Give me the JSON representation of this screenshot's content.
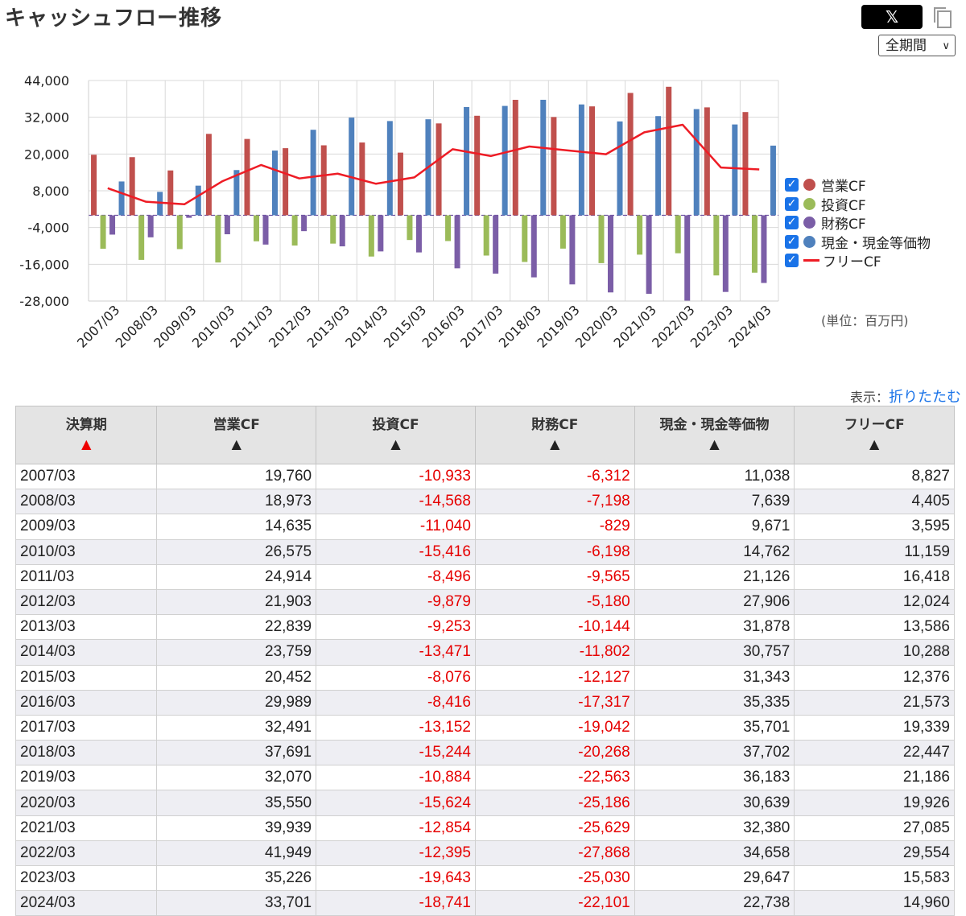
{
  "page": {
    "title": "キャッシュフロー推移",
    "share_label": "𝕏",
    "period_select": "全期間",
    "unit_label": "(単位：百万円)",
    "display_prefix": "表示：",
    "display_link": "折りたたむ"
  },
  "legend": [
    {
      "label": "営業CF",
      "color": "#c0504d",
      "kind": "bar"
    },
    {
      "label": "投資CF",
      "color": "#9bbb59",
      "kind": "bar"
    },
    {
      "label": "財務CF",
      "color": "#7b5ea7",
      "kind": "bar"
    },
    {
      "label": "現金・現金等価物",
      "color": "#4f81bd",
      "kind": "bar"
    },
    {
      "label": "フリーCF",
      "color": "#ee1c25",
      "kind": "line"
    }
  ],
  "chart_data": {
    "type": "bar",
    "categories": [
      "2007/03",
      "2008/03",
      "2009/03",
      "2010/03",
      "2011/03",
      "2012/03",
      "2013/03",
      "2014/03",
      "2015/03",
      "2016/03",
      "2017/03",
      "2018/03",
      "2019/03",
      "2020/03",
      "2021/03",
      "2022/03",
      "2023/03",
      "2024/03"
    ],
    "series": [
      {
        "name": "営業CF",
        "type": "bar",
        "color": "#c0504d",
        "values": [
          19760,
          18973,
          14635,
          26575,
          24914,
          21903,
          22839,
          23759,
          20452,
          29989,
          32491,
          37691,
          32070,
          35550,
          39939,
          41949,
          35226,
          33701
        ]
      },
      {
        "name": "投資CF",
        "type": "bar",
        "color": "#9bbb59",
        "values": [
          -10933,
          -14568,
          -11040,
          -15416,
          -8496,
          -9879,
          -9253,
          -13471,
          -8076,
          -8416,
          -13152,
          -15244,
          -10884,
          -15624,
          -12854,
          -12395,
          -19643,
          -18741
        ]
      },
      {
        "name": "財務CF",
        "type": "bar",
        "color": "#7b5ea7",
        "values": [
          -6312,
          -7198,
          -829,
          -6198,
          -9565,
          -5180,
          -10144,
          -11802,
          -12127,
          -17317,
          -19042,
          -20268,
          -22563,
          -25186,
          -25629,
          -27868,
          -25030,
          -22101
        ]
      },
      {
        "name": "現金・現金等価物",
        "type": "bar",
        "color": "#4f81bd",
        "values": [
          11038,
          7639,
          9671,
          14762,
          21126,
          27906,
          31878,
          30757,
          31343,
          35335,
          35701,
          37702,
          36183,
          30639,
          32380,
          34658,
          29647,
          22738
        ]
      },
      {
        "name": "フリーCF",
        "type": "line",
        "color": "#ee1c25",
        "values": [
          8827,
          4405,
          3595,
          11159,
          16418,
          12024,
          13586,
          10288,
          12376,
          21573,
          19339,
          22447,
          21186,
          19926,
          27085,
          29554,
          15583,
          14960
        ]
      }
    ],
    "yticks": [
      "44,000",
      "32,000",
      "20,000",
      "8,000",
      "-4,000",
      "-16,000",
      "-28,000"
    ],
    "ylim": [
      -28000,
      44000
    ],
    "grid": true,
    "legend_position": "right"
  },
  "table": {
    "headers": [
      {
        "label": "決算期",
        "sort": "▲",
        "active": true
      },
      {
        "label": "営業CF",
        "sort": "▲",
        "active": false
      },
      {
        "label": "投資CF",
        "sort": "▲",
        "active": false
      },
      {
        "label": "財務CF",
        "sort": "▲",
        "active": false
      },
      {
        "label": "現金・現金等価物",
        "sort": "▲",
        "active": false
      },
      {
        "label": "フリーCF",
        "sort": "▲",
        "active": false
      }
    ],
    "rows": [
      [
        "2007/03",
        "19,760",
        "-10,933",
        "-6,312",
        "11,038",
        "8,827"
      ],
      [
        "2008/03",
        "18,973",
        "-14,568",
        "-7,198",
        "7,639",
        "4,405"
      ],
      [
        "2009/03",
        "14,635",
        "-11,040",
        "-829",
        "9,671",
        "3,595"
      ],
      [
        "2010/03",
        "26,575",
        "-15,416",
        "-6,198",
        "14,762",
        "11,159"
      ],
      [
        "2011/03",
        "24,914",
        "-8,496",
        "-9,565",
        "21,126",
        "16,418"
      ],
      [
        "2012/03",
        "21,903",
        "-9,879",
        "-5,180",
        "27,906",
        "12,024"
      ],
      [
        "2013/03",
        "22,839",
        "-9,253",
        "-10,144",
        "31,878",
        "13,586"
      ],
      [
        "2014/03",
        "23,759",
        "-13,471",
        "-11,802",
        "30,757",
        "10,288"
      ],
      [
        "2015/03",
        "20,452",
        "-8,076",
        "-12,127",
        "31,343",
        "12,376"
      ],
      [
        "2016/03",
        "29,989",
        "-8,416",
        "-17,317",
        "35,335",
        "21,573"
      ],
      [
        "2017/03",
        "32,491",
        "-13,152",
        "-19,042",
        "35,701",
        "19,339"
      ],
      [
        "2018/03",
        "37,691",
        "-15,244",
        "-20,268",
        "37,702",
        "22,447"
      ],
      [
        "2019/03",
        "32,070",
        "-10,884",
        "-22,563",
        "36,183",
        "21,186"
      ],
      [
        "2020/03",
        "35,550",
        "-15,624",
        "-25,186",
        "30,639",
        "19,926"
      ],
      [
        "2021/03",
        "39,939",
        "-12,854",
        "-25,629",
        "32,380",
        "27,085"
      ],
      [
        "2022/03",
        "41,949",
        "-12,395",
        "-27,868",
        "34,658",
        "29,554"
      ],
      [
        "2023/03",
        "35,226",
        "-19,643",
        "-25,030",
        "29,647",
        "15,583"
      ],
      [
        "2024/03",
        "33,701",
        "-18,741",
        "-22,101",
        "22,738",
        "14,960"
      ]
    ]
  }
}
